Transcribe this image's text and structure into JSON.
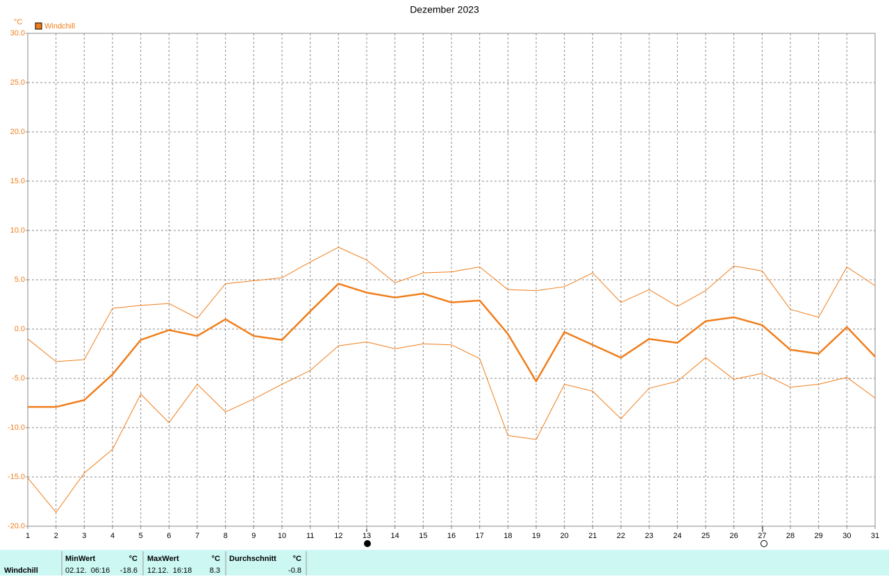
{
  "chart_data": {
    "type": "line",
    "title": "Dezember 2023",
    "y_unit": "°C",
    "x": [
      1,
      2,
      3,
      4,
      5,
      6,
      7,
      8,
      9,
      10,
      11,
      12,
      13,
      14,
      15,
      16,
      17,
      18,
      19,
      20,
      21,
      22,
      23,
      24,
      25,
      26,
      27,
      28,
      29,
      30,
      31
    ],
    "xlim": [
      1,
      31
    ],
    "ylim": [
      -20,
      30
    ],
    "yticks": [
      {
        "value": -20,
        "label": "-20.0"
      },
      {
        "value": -15,
        "label": "-15.0"
      },
      {
        "value": -10,
        "label": "-10.0"
      },
      {
        "value": -5,
        "label": "-5.0"
      },
      {
        "value": 0,
        "label": "0.0"
      },
      {
        "value": 5,
        "label": "5.0"
      },
      {
        "value": 10,
        "label": "10.0"
      },
      {
        "value": 15,
        "label": "15.0"
      },
      {
        "value": 20,
        "label": "20.0"
      },
      {
        "value": 25,
        "label": "25.0"
      },
      {
        "value": 30,
        "label": "30.0"
      }
    ],
    "grid": true,
    "legend": "upper left",
    "series": [
      {
        "name": "Windchill",
        "color": "#f07d1a",
        "values": [
          -7.9,
          -7.9,
          -7.2,
          -4.6,
          -1.1,
          -0.1,
          -0.7,
          1.0,
          -0.7,
          -1.1,
          1.8,
          4.6,
          3.7,
          3.2,
          3.6,
          2.7,
          2.9,
          -0.5,
          -5.3,
          -0.3,
          -1.6,
          -2.9,
          -1.0,
          -1.4,
          0.8,
          1.2,
          0.4,
          -2.1,
          -2.5,
          0.2,
          -2.8
        ]
      },
      {
        "color": "#f07d1a",
        "values": [
          -1.0,
          -3.3,
          -3.1,
          2.1,
          2.4,
          2.6,
          1.1,
          4.6,
          4.9,
          5.2,
          6.8,
          8.3,
          7.0,
          4.7,
          5.7,
          5.8,
          6.3,
          4.0,
          3.9,
          4.3,
          5.7,
          2.7,
          4.0,
          2.3,
          3.9,
          6.4,
          5.9,
          2.0,
          1.2,
          6.3,
          4.4
        ]
      },
      {
        "color": "#f07d1a",
        "values": [
          -15.1,
          -18.6,
          -14.6,
          -12.2,
          -6.6,
          -9.5,
          -5.6,
          -8.4,
          -7.1,
          -5.6,
          -4.2,
          -1.7,
          -1.3,
          -2.0,
          -1.5,
          -1.6,
          -3.0,
          -10.8,
          -11.2,
          -5.6,
          -6.3,
          -9.1,
          -6.0,
          -5.3,
          -2.9,
          -5.1,
          -4.5,
          -5.9,
          -5.6,
          -4.9,
          -7.0
        ]
      }
    ]
  },
  "stats": {
    "label": "Windchill",
    "columns": [
      {
        "header": "MinWert",
        "unit": "°C",
        "time": "02.12.  06:16",
        "value": "-18.6"
      },
      {
        "header": "MaxWert",
        "unit": "°C",
        "time": "12.12.  16:18",
        "value": "8.3"
      },
      {
        "header": "Durchschnitt",
        "unit": "°C",
        "value": "-0.8"
      }
    ]
  }
}
